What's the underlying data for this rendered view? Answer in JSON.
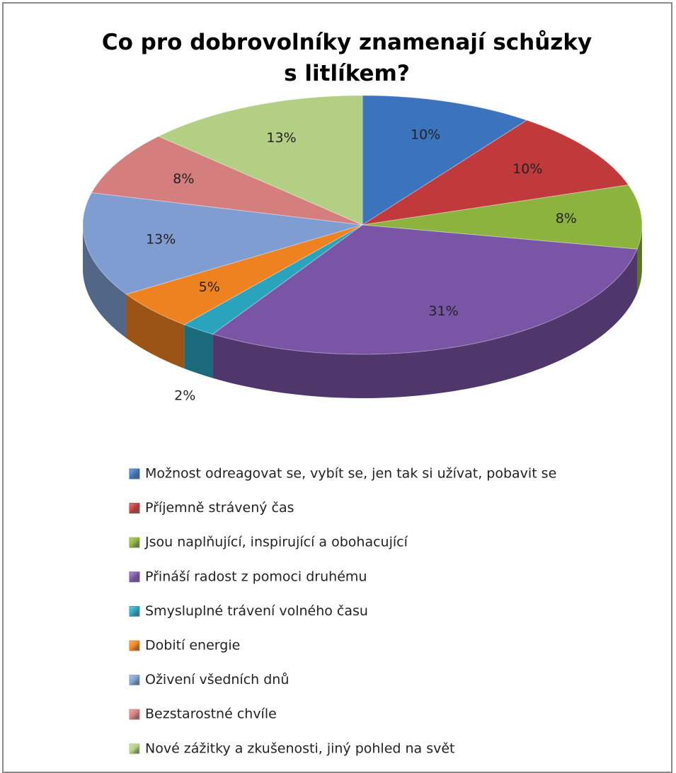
{
  "chart_data": {
    "type": "pie",
    "title": "Co pro dobrovolníky znamenají schůzky s litlíkem?",
    "categories": [
      "Možnost odreagovat se, vybít se, jen tak si užívat, pobavit se",
      "Příjemně strávený čas",
      "Jsou naplňující, inspirující a obohacující",
      "Přináší radost z pomoci druhému",
      "Smysluplné trávení volného času",
      "Dobití energie",
      "Oživení všedních dnů",
      "Bezstarostné chvíle",
      "Nové zážitky a zkušenosti, jiný pohled na svět"
    ],
    "values": [
      10,
      10,
      8,
      31,
      2,
      5,
      13,
      8,
      13
    ],
    "value_labels": [
      "10%",
      "10%",
      "8%",
      "31%",
      "2%",
      "5%",
      "13%",
      "8%",
      "13%"
    ],
    "colors": [
      "#3b73bd",
      "#c0393b",
      "#8cb33d",
      "#7a55a6",
      "#2aa3bd",
      "#ee8220",
      "#7f9dd1",
      "#d47e7e",
      "#b3cf83"
    ],
    "legend": "bottom"
  }
}
